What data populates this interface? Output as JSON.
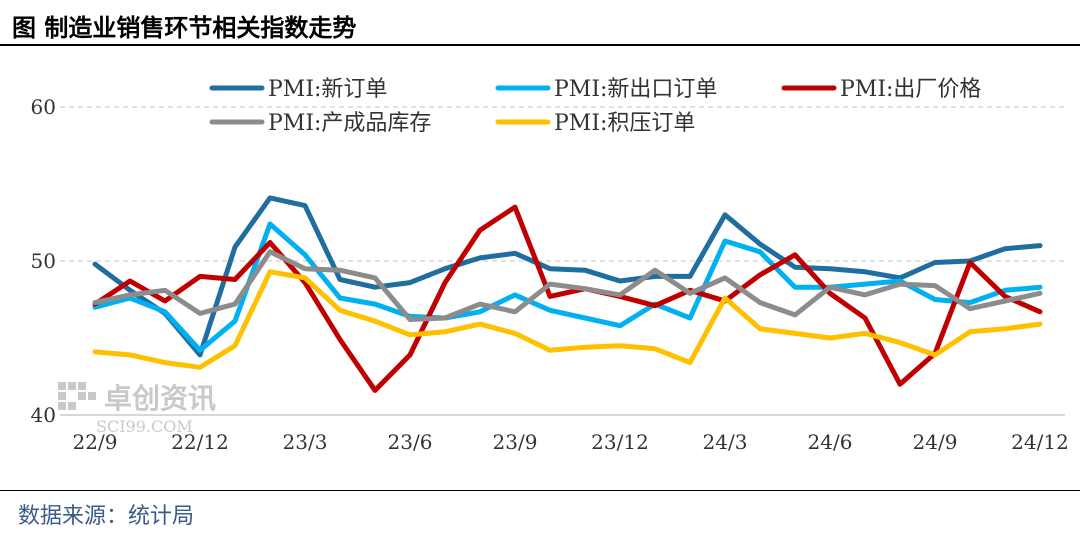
{
  "header": {
    "title": "图  制造业销售环节相关指数走势"
  },
  "footer": {
    "source": "数据来源：统计局"
  },
  "watermark": {
    "name": "卓创资讯",
    "site": "SCI99.COM"
  },
  "chart_data": {
    "type": "line",
    "title": "制造业销售环节相关指数走势",
    "xlabel": "",
    "ylabel": "",
    "ylim": [
      40,
      60
    ],
    "yticks": [
      40,
      50,
      60
    ],
    "grid": "dashed horizontal",
    "legend_position": "top",
    "categories": [
      "22/9",
      "22/10",
      "22/11",
      "22/12",
      "23/1",
      "23/2",
      "23/3",
      "23/4",
      "23/5",
      "23/6",
      "23/7",
      "23/8",
      "23/9",
      "23/10",
      "23/11",
      "23/12",
      "24/1",
      "24/2",
      "24/3",
      "24/4",
      "24/5",
      "24/6",
      "24/7",
      "24/8",
      "24/9",
      "24/10",
      "24/11",
      "24/12"
    ],
    "xtick_labels": [
      "22/9",
      "22/12",
      "23/3",
      "23/6",
      "23/9",
      "23/12",
      "24/3",
      "24/6",
      "24/9",
      "24/12"
    ],
    "series": [
      {
        "name": "PMI:新订单",
        "color": "#1f6e9f",
        "values": [
          49.8,
          48.1,
          46.6,
          43.9,
          50.9,
          54.1,
          53.6,
          48.8,
          48.3,
          48.6,
          49.5,
          50.2,
          50.5,
          49.5,
          49.4,
          48.7,
          49.0,
          49.0,
          53.0,
          51.1,
          49.6,
          49.5,
          49.3,
          48.9,
          49.9,
          50.0,
          50.8,
          51.0
        ]
      },
      {
        "name": "PMI:新出口订单",
        "color": "#00b0f0",
        "values": [
          47.0,
          47.6,
          46.7,
          44.2,
          46.1,
          52.4,
          50.4,
          47.6,
          47.2,
          46.4,
          46.3,
          46.7,
          47.8,
          46.8,
          46.3,
          45.8,
          47.2,
          46.3,
          51.3,
          50.6,
          48.3,
          48.3,
          48.5,
          48.7,
          47.5,
          47.3,
          48.1,
          48.3
        ]
      },
      {
        "name": "PMI:出厂价格",
        "color": "#c00000",
        "values": [
          47.2,
          48.7,
          47.4,
          49.0,
          48.8,
          51.2,
          48.6,
          44.9,
          41.6,
          43.9,
          48.6,
          52.0,
          53.5,
          47.7,
          48.2,
          47.7,
          47.1,
          48.1,
          47.4,
          49.1,
          50.4,
          47.9,
          46.3,
          42.0,
          44.0,
          49.9,
          47.7,
          46.7
        ]
      },
      {
        "name": "PMI:产成品库存",
        "color": "#8c8c8c",
        "values": [
          47.3,
          47.8,
          48.1,
          46.6,
          47.2,
          50.6,
          49.5,
          49.4,
          48.9,
          46.2,
          46.3,
          47.2,
          46.7,
          48.5,
          48.2,
          47.8,
          49.4,
          47.9,
          48.9,
          47.3,
          46.5,
          48.3,
          47.8,
          48.5,
          48.4,
          46.9,
          47.4,
          47.9
        ]
      },
      {
        "name": "PMI:积压订单",
        "color": "#ffc000",
        "values": [
          44.1,
          43.9,
          43.4,
          43.1,
          44.5,
          49.3,
          48.9,
          46.8,
          46.1,
          45.2,
          45.4,
          45.9,
          45.3,
          44.2,
          44.4,
          44.5,
          44.3,
          43.4,
          47.6,
          45.6,
          45.3,
          45.0,
          45.3,
          44.7,
          43.9,
          45.4,
          45.6,
          45.9
        ]
      }
    ]
  }
}
